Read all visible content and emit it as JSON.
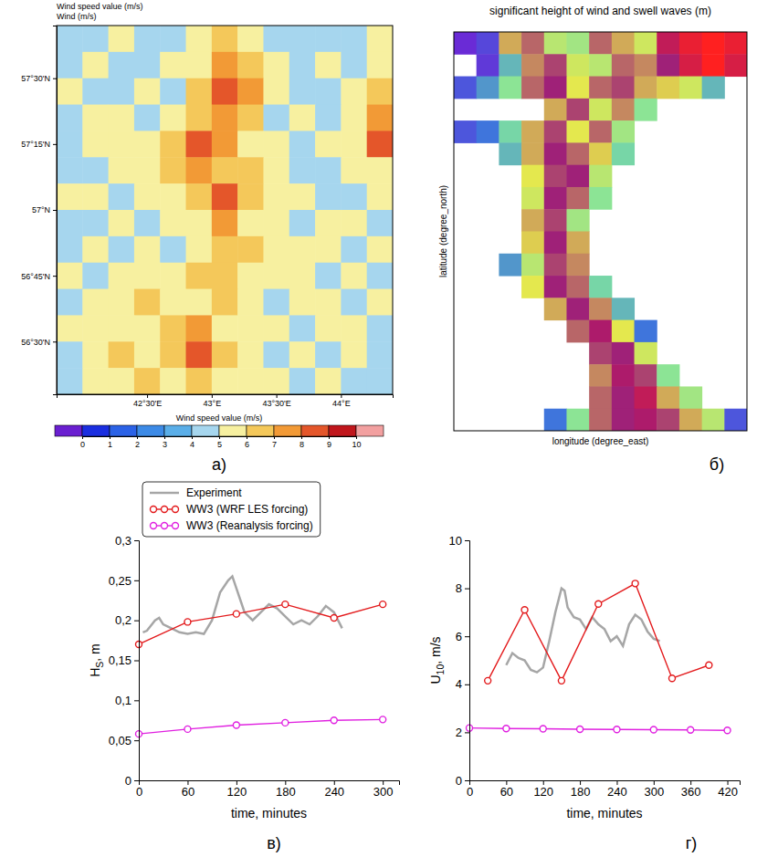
{
  "chart_data": [
    {
      "type": "heatmap",
      "panel_label": "а)",
      "title": "Wind speed value (m/s)",
      "subtitle": "Wind (m/s)",
      "xlim": [
        41.8,
        44.4
      ],
      "ylim": [
        56.3,
        57.7
      ],
      "xticks": [
        {
          "value": 42.5,
          "label": "42°30'E"
        },
        {
          "value": 43,
          "label": "43°E"
        },
        {
          "value": 43.5,
          "label": "43°30'E"
        },
        {
          "value": 44,
          "label": "44°E"
        }
      ],
      "yticks": [
        {
          "value": 56.5,
          "label": "56°30'N"
        },
        {
          "value": 56.75,
          "label": "56°45'N"
        },
        {
          "value": 57,
          "label": "57°N"
        },
        {
          "value": 57.25,
          "label": "57°15'N"
        },
        {
          "value": 57.5,
          "label": "57°30'N"
        }
      ],
      "x_edges": [
        41.8,
        42,
        42.2,
        42.4,
        42.6,
        42.8,
        43,
        43.2,
        43.4,
        43.6,
        43.8,
        44,
        44.2,
        44.4
      ],
      "y_edges": [
        57.7,
        57.6,
        57.5,
        57.4,
        57.3,
        57.2,
        57.1,
        57,
        56.9,
        56.8,
        56.7,
        56.6,
        56.5,
        56.4,
        56.3
      ],
      "cells": [
        [
          4.5,
          4.2,
          5,
          4.5,
          4.8,
          5.2,
          6.5,
          5.5,
          4.5,
          4.8,
          4.5,
          4.6,
          5
        ],
        [
          4.8,
          5.2,
          4.5,
          4.6,
          5,
          5.5,
          7,
          6,
          5,
          4.5,
          5.2,
          4.7,
          5.5
        ],
        [
          5,
          4.5,
          4.8,
          5.5,
          4.7,
          6,
          8.5,
          7,
          5.2,
          4.6,
          4.8,
          5,
          6
        ],
        [
          4.6,
          5.5,
          5,
          4.5,
          5.2,
          6.8,
          7.5,
          6,
          4.8,
          5,
          4.6,
          5.5,
          7
        ],
        [
          4.4,
          5,
          5.8,
          5.2,
          6,
          8.8,
          7.2,
          5.8,
          5,
          4.5,
          5,
          5.2,
          8.5
        ],
        [
          4.8,
          4.5,
          5.2,
          5.8,
          6.5,
          7,
          6.5,
          6.2,
          5.5,
          4.8,
          4.5,
          5,
          5.5
        ],
        [
          5,
          5.2,
          4.8,
          5,
          5.5,
          6,
          8,
          6.8,
          5,
          5.2,
          4.8,
          4.6,
          5
        ],
        [
          4.5,
          4.8,
          5.5,
          4.6,
          5,
          5.5,
          7.5,
          5.8,
          5.2,
          4.8,
          5.5,
          5,
          4.8
        ],
        [
          4.8,
          5,
          4.6,
          5.2,
          4.8,
          5.2,
          6.8,
          6.2,
          5.5,
          5,
          5.8,
          4.7,
          5.2
        ],
        [
          5.2,
          4.6,
          5,
          5.5,
          5.2,
          6,
          6.5,
          5.5,
          5,
          5.3,
          4.8,
          5.5,
          4.8
        ],
        [
          4.6,
          5,
          5.8,
          6,
          5.5,
          5.8,
          6.2,
          5.2,
          4.8,
          5.5,
          5,
          4.6,
          5
        ],
        [
          5,
          5.5,
          5.2,
          5.6,
          6.5,
          7,
          5.8,
          5,
          5.2,
          4.8,
          5.5,
          5,
          4.5
        ],
        [
          4.8,
          5.2,
          6,
          5.5,
          6.2,
          8.8,
          6,
          5.5,
          4.6,
          5,
          4.8,
          5.2,
          4.7
        ],
        [
          4.5,
          5,
          5.5,
          6.2,
          5.5,
          6.5,
          5.8,
          5,
          5.2,
          4.6,
          5,
          4.8,
          4.5
        ]
      ],
      "colorbar": {
        "title": "Wind speed value (m/s)",
        "ticks": [
          0,
          1,
          2,
          3,
          4,
          5,
          6,
          7,
          8,
          9,
          10
        ]
      }
    },
    {
      "type": "heatmap",
      "panel_label": "б)",
      "title": "significant height of wind and swell waves (m)",
      "xlabel": "longitude (degree_east)",
      "ylabel": "latitude (degree_north)",
      "tick_labels": false,
      "cells": [
        [
          0.05,
          0.07,
          0.2,
          0.22,
          0.16,
          0.15,
          0.22,
          0.2,
          0.17,
          0.26,
          0.28,
          0.29,
          0.28
        ],
        [
          null,
          0.06,
          0.12,
          0.21,
          0.23,
          0.17,
          0.16,
          0.22,
          0.21,
          0.24,
          0.27,
          0.29,
          0.27
        ],
        [
          0.08,
          0.11,
          0.14,
          0.22,
          0.24,
          0.18,
          0.22,
          0.23,
          0.2,
          0.19,
          0.17,
          0.12,
          null
        ],
        [
          null,
          null,
          null,
          null,
          0.2,
          0.23,
          0.17,
          0.21,
          0.14,
          null,
          null,
          null,
          null
        ],
        [
          0.08,
          0.1,
          0.13,
          0.2,
          0.23,
          0.18,
          0.22,
          0.15,
          null,
          null,
          null,
          null,
          null
        ],
        [
          null,
          null,
          0.12,
          0.2,
          0.24,
          0.22,
          0.19,
          0.13,
          null,
          null,
          null,
          null,
          null
        ],
        [
          null,
          null,
          null,
          0.18,
          0.23,
          0.24,
          0.16,
          null,
          null,
          null,
          null,
          null,
          null
        ],
        [
          null,
          null,
          null,
          0.17,
          0.24,
          0.22,
          0.14,
          null,
          null,
          null,
          null,
          null,
          null
        ],
        [
          null,
          null,
          null,
          0.2,
          0.23,
          0.15,
          null,
          null,
          null,
          null,
          null,
          null,
          null
        ],
        [
          null,
          null,
          null,
          0.19,
          0.24,
          0.2,
          null,
          null,
          null,
          null,
          null,
          null,
          null
        ],
        [
          null,
          null,
          0.11,
          0.16,
          0.23,
          0.21,
          null,
          null,
          null,
          null,
          null,
          null,
          null
        ],
        [
          null,
          null,
          null,
          0.18,
          0.24,
          0.22,
          0.13,
          null,
          null,
          null,
          null,
          null,
          null
        ],
        [
          null,
          null,
          null,
          null,
          0.2,
          0.24,
          0.21,
          0.12,
          null,
          null,
          null,
          null,
          null
        ],
        [
          null,
          null,
          null,
          null,
          null,
          0.22,
          0.25,
          0.18,
          0.1,
          null,
          null,
          null,
          null
        ],
        [
          null,
          null,
          null,
          null,
          null,
          null,
          0.23,
          0.24,
          0.17,
          null,
          null,
          null,
          null
        ],
        [
          null,
          null,
          null,
          null,
          null,
          null,
          0.21,
          0.25,
          0.23,
          0.14,
          null,
          null,
          null
        ],
        [
          null,
          null,
          null,
          null,
          null,
          null,
          0.22,
          0.24,
          0.26,
          0.2,
          0.15,
          null,
          null
        ],
        [
          null,
          null,
          null,
          null,
          0.1,
          0.14,
          0.22,
          0.24,
          0.25,
          0.23,
          0.2,
          0.16,
          0.08
        ]
      ]
    },
    {
      "type": "line",
      "panel_label": "в)",
      "xlabel": "time, minutes",
      "ylabel": "HS, m",
      "xlim": [
        0,
        320
      ],
      "ylim": [
        0,
        0.3
      ],
      "xticks": [
        0,
        60,
        120,
        180,
        240,
        300
      ],
      "yticks": [
        0,
        {
          "value": 0.05,
          "label": "0,05"
        },
        {
          "value": 0.1,
          "label": "0,1"
        },
        {
          "value": 0.15,
          "label": "0,15"
        },
        {
          "value": 0.2,
          "label": "0,2"
        },
        {
          "value": 0.25,
          "label": "0,25"
        },
        {
          "value": 0.3,
          "label": "0,3"
        }
      ],
      "legend": "top",
      "series": [
        {
          "name": "Experiment",
          "color": "#a6a6a6",
          "marker": "none",
          "line_style": "solid",
          "x": [
            5,
            10,
            20,
            25,
            30,
            40,
            50,
            60,
            70,
            80,
            90,
            100,
            110,
            115,
            120,
            125,
            130,
            140,
            150,
            160,
            170,
            180,
            190,
            200,
            210,
            220,
            230,
            240,
            245,
            250
          ],
          "values": [
            0.185,
            0.187,
            0.2,
            0.203,
            0.195,
            0.19,
            0.185,
            0.183,
            0.185,
            0.183,
            0.2,
            0.235,
            0.25,
            0.255,
            0.24,
            0.225,
            0.21,
            0.2,
            0.21,
            0.22,
            0.215,
            0.205,
            0.195,
            0.2,
            0.195,
            0.205,
            0.218,
            0.21,
            0.2,
            0.19
          ]
        },
        {
          "name": "WW3 (WRF LES forcing)",
          "color": "#e31a1c",
          "marker": "circle_open",
          "line_style": "solid",
          "x": [
            0,
            60,
            120,
            180,
            240,
            300
          ],
          "values": [
            0.17,
            0.198,
            0.208,
            0.22,
            0.203,
            0.22
          ]
        },
        {
          "name": "WW3 (Reanalysis forcing)",
          "color": "#e020e0",
          "marker": "circle_open",
          "line_style": "solid",
          "x": [
            0,
            60,
            120,
            180,
            240,
            300
          ],
          "values": [
            0.058,
            0.064,
            0.069,
            0.072,
            0.075,
            0.076
          ]
        }
      ]
    },
    {
      "type": "line",
      "panel_label": "г)",
      "xlabel": "time, minutes",
      "ylabel": "U10, m/s",
      "xlim": [
        0,
        440
      ],
      "ylim": [
        0,
        10
      ],
      "xticks": [
        0,
        60,
        120,
        180,
        240,
        300,
        360,
        420
      ],
      "yticks": [
        0,
        2,
        4,
        6,
        8,
        10
      ],
      "series": [
        {
          "color": "#a6a6a6",
          "marker": "none",
          "line_style": "solid",
          "x": [
            60,
            70,
            80,
            90,
            100,
            110,
            120,
            130,
            140,
            150,
            155,
            160,
            170,
            180,
            190,
            200,
            210,
            220,
            230,
            240,
            250,
            260,
            270,
            280,
            290,
            300,
            310
          ],
          "values": [
            4.8,
            5.3,
            5.1,
            5,
            4.6,
            4.5,
            4.7,
            5.8,
            7,
            8,
            7.9,
            7.2,
            6.8,
            6.7,
            6.3,
            6.8,
            6.5,
            6.3,
            5.8,
            6,
            5.6,
            6.5,
            6.9,
            6.7,
            6.2,
            5.9,
            5.8
          ]
        },
        {
          "color": "#e31a1c",
          "marker": "circle_open",
          "line_style": "solid",
          "x": [
            30,
            90,
            150,
            210,
            270,
            330,
            390
          ],
          "values": [
            4.15,
            7.1,
            4.15,
            7.35,
            8.2,
            4.25,
            4.8
          ]
        },
        {
          "color": "#e020e0",
          "marker": "circle_open",
          "line_style": "solid",
          "x": [
            0,
            60,
            120,
            180,
            240,
            300,
            360,
            420
          ],
          "values": [
            2.18,
            2.16,
            2.15,
            2.13,
            2.12,
            2.11,
            2.1,
            2.08
          ]
        }
      ]
    }
  ]
}
